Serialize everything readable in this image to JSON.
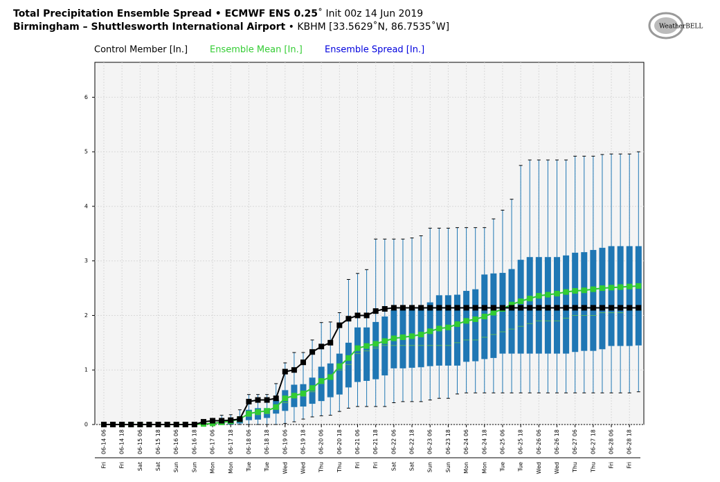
{
  "chart_data": {
    "type": "boxplot",
    "title_bold": "Total Precipitation Ensemble Spread • ECMWF ENS 0.25",
    "title_rest": "˚ Init 00z 14 Jun 2019",
    "subtitle_bold": "Birmingham – Shuttlesworth International Airport",
    "subtitle_rest": " • KBHM [33.5629˚N, 86.7535˚W]",
    "logo": "WeatherBELL",
    "categories": [
      "06-14 06",
      null,
      "06-14 18",
      null,
      "06-15 06",
      null,
      "06-15 18",
      null,
      "06-16 06",
      null,
      "06-16 18",
      null,
      "06-17 06",
      null,
      "06-17 18",
      null,
      "06-18 06",
      null,
      "06-18 18",
      null,
      "06-19 06",
      null,
      "06-19 18",
      null,
      "06-20 06",
      null,
      "06-20 18",
      null,
      "06-21 06",
      null,
      "06-21 18",
      null,
      "06-22 06",
      null,
      "06-22 18",
      null,
      "06-23 06",
      null,
      "06-23 18",
      null,
      "06-24 06",
      null,
      "06-24 18",
      null,
      "06-25 06",
      null,
      "06-25 18",
      null,
      "06-26 06",
      null,
      "06-26 18",
      null,
      "06-27 06",
      null,
      "06-27 18",
      null,
      "06-28 06",
      null,
      "06-28 18",
      null
    ],
    "day_labels": [
      "Fri",
      null,
      "Fri",
      null,
      "Sat",
      null,
      "Sat",
      null,
      "Sun",
      null,
      "Sun",
      null,
      "Mon",
      null,
      "Mon",
      null,
      "Tue",
      null,
      "Tue",
      null,
      "Wed",
      null,
      "Wed",
      null,
      "Thu",
      null,
      "Thu",
      null,
      "Fri",
      null,
      "Fri",
      null,
      "Sat",
      null,
      "Sat",
      null,
      "Sun",
      null,
      "Sun",
      null,
      "Mon",
      null,
      "Mon",
      null,
      "Tue",
      null,
      "Tue",
      null,
      "Wed",
      null,
      "Wed",
      null,
      "Thu",
      null,
      "Thu",
      null,
      "Fri",
      null,
      "Fri",
      null
    ],
    "ylim": [
      0,
      6.64
    ],
    "yticks": [
      0,
      1,
      2,
      3,
      4,
      5,
      6
    ],
    "grid": true,
    "series": [
      {
        "name": "Control Member [In.]",
        "color": "#000000",
        "values": [
          0,
          0,
          0,
          0,
          0,
          0,
          0,
          0,
          0,
          0,
          0,
          0.05,
          0.07,
          0.07,
          0.08,
          0.1,
          0.42,
          0.45,
          0.45,
          0.48,
          0.97,
          1.0,
          1.14,
          1.33,
          1.43,
          1.5,
          1.82,
          1.94,
          2.0,
          2.0,
          2.08,
          2.12,
          2.14,
          2.14,
          2.14,
          2.14,
          2.14,
          2.14,
          2.14,
          2.14,
          2.14,
          2.14,
          2.14,
          2.14,
          2.14,
          2.14,
          2.14,
          2.14,
          2.14,
          2.14,
          2.14,
          2.14,
          2.14,
          2.14,
          2.14,
          2.14,
          2.14,
          2.14,
          2.14,
          2.14
        ]
      },
      {
        "name": "Ensemble Mean [In.]",
        "color": "#33cc33",
        "values": [
          0,
          0,
          0,
          0,
          0,
          0,
          0,
          0,
          0,
          0,
          0,
          0.01,
          0.02,
          0.04,
          0.06,
          0.1,
          0.2,
          0.23,
          0.25,
          0.32,
          0.48,
          0.53,
          0.57,
          0.67,
          0.8,
          0.87,
          1.07,
          1.22,
          1.4,
          1.44,
          1.48,
          1.53,
          1.58,
          1.6,
          1.62,
          1.65,
          1.71,
          1.76,
          1.78,
          1.84,
          1.9,
          1.93,
          1.98,
          2.05,
          2.12,
          2.2,
          2.26,
          2.31,
          2.36,
          2.38,
          2.4,
          2.43,
          2.45,
          2.46,
          2.48,
          2.5,
          2.51,
          2.52,
          2.53,
          2.54
        ]
      },
      {
        "name": "Ensemble Spread [In.]",
        "color": "#0000dd",
        "box_color": "#1f77b4",
        "median_color": "#5cb85c",
        "low": [
          0,
          0,
          0,
          0,
          0,
          0,
          0,
          0,
          0,
          0,
          0,
          0,
          0,
          0,
          0,
          0,
          0,
          0,
          0,
          0,
          0.02,
          0.05,
          0.1,
          0.14,
          0.16,
          0.17,
          0.24,
          0.3,
          0.33,
          0.33,
          0.33,
          0.33,
          0.4,
          0.42,
          0.42,
          0.42,
          0.45,
          0.48,
          0.48,
          0.56,
          0.58,
          0.58,
          0.58,
          0.58,
          0.58,
          0.58,
          0.58,
          0.58,
          0.58,
          0.58,
          0.58,
          0.58,
          0.58,
          0.58,
          0.58,
          0.58,
          0.58,
          0.58,
          0.58,
          0.6
        ],
        "q1": [
          0,
          0,
          0,
          0,
          0,
          0,
          0,
          0,
          0,
          0,
          0,
          0,
          0,
          0,
          0,
          0.02,
          0.08,
          0.09,
          0.12,
          0.2,
          0.25,
          0.32,
          0.33,
          0.38,
          0.43,
          0.5,
          0.55,
          0.68,
          0.78,
          0.8,
          0.83,
          0.9,
          1.03,
          1.03,
          1.04,
          1.05,
          1.07,
          1.08,
          1.08,
          1.08,
          1.15,
          1.16,
          1.2,
          1.22,
          1.3,
          1.3,
          1.3,
          1.3,
          1.3,
          1.3,
          1.3,
          1.3,
          1.33,
          1.35,
          1.35,
          1.38,
          1.44,
          1.44,
          1.44,
          1.45
        ],
        "median": [
          0,
          0,
          0,
          0,
          0,
          0,
          0,
          0,
          0,
          0,
          0,
          0,
          0,
          0,
          0.02,
          0.05,
          0.15,
          0.18,
          0.2,
          0.3,
          0.4,
          0.5,
          0.52,
          0.6,
          0.75,
          0.85,
          1.0,
          1.1,
          1.3,
          1.35,
          1.4,
          1.45,
          1.45,
          1.45,
          1.45,
          1.45,
          1.45,
          1.45,
          1.45,
          1.5,
          1.55,
          1.55,
          1.6,
          1.65,
          1.7,
          1.75,
          1.8,
          1.85,
          1.9,
          1.9,
          1.9,
          1.95,
          2.0,
          2.0,
          2.0,
          2.05,
          2.05,
          2.05,
          2.1,
          2.1
        ],
        "q3": [
          0,
          0,
          0,
          0,
          0,
          0,
          0,
          0,
          0,
          0,
          0,
          0.02,
          0.03,
          0.05,
          0.08,
          0.12,
          0.27,
          0.3,
          0.3,
          0.45,
          0.63,
          0.73,
          0.74,
          0.86,
          1.06,
          1.12,
          1.3,
          1.5,
          1.78,
          1.78,
          1.88,
          1.98,
          2.1,
          2.12,
          2.12,
          2.14,
          2.24,
          2.37,
          2.37,
          2.38,
          2.45,
          2.48,
          2.75,
          2.77,
          2.78,
          2.85,
          3.02,
          3.07,
          3.07,
          3.07,
          3.07,
          3.1,
          3.15,
          3.16,
          3.2,
          3.24,
          3.27,
          3.27,
          3.27,
          3.27
        ],
        "high": [
          0,
          0,
          0,
          0,
          0,
          0,
          0,
          0,
          0,
          0,
          0,
          0.07,
          0.1,
          0.17,
          0.18,
          0.27,
          0.55,
          0.55,
          0.55,
          0.75,
          1.13,
          1.32,
          1.32,
          1.55,
          1.87,
          1.88,
          2.05,
          2.66,
          2.77,
          2.84,
          3.4,
          3.4,
          3.4,
          3.4,
          3.42,
          3.46,
          3.6,
          3.6,
          3.6,
          3.61,
          3.61,
          3.61,
          3.61,
          3.77,
          3.93,
          4.13,
          4.75,
          4.85,
          4.85,
          4.85,
          4.85,
          4.85,
          4.92,
          4.92,
          4.92,
          4.95,
          4.96,
          4.96,
          4.96,
          5.0
        ]
      }
    ]
  }
}
